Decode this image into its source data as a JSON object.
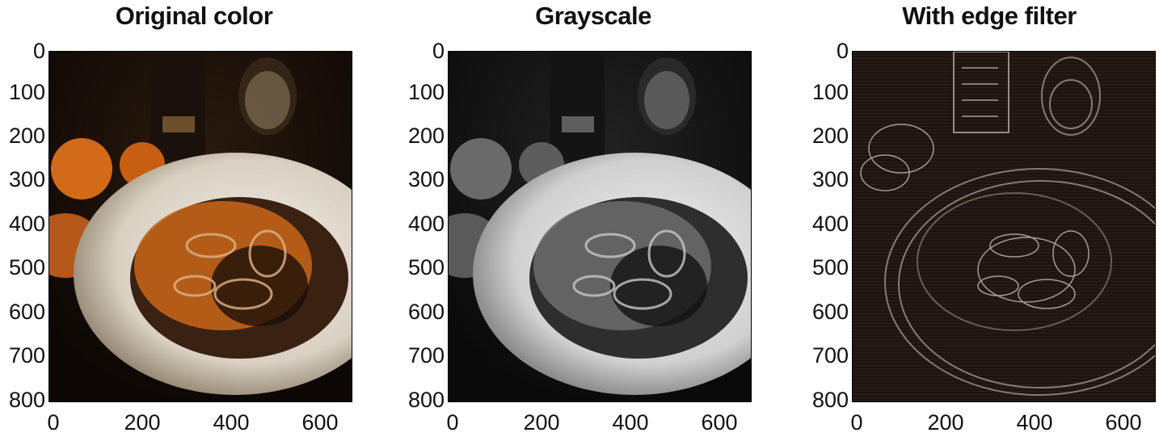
{
  "panels": [
    {
      "title": "Original color",
      "variant": "color"
    },
    {
      "title": "Grayscale",
      "variant": "gray"
    },
    {
      "title": "With edge filter",
      "variant": "edge"
    }
  ],
  "y_ticks": [
    "0",
    "100",
    "200",
    "300",
    "400",
    "500",
    "600",
    "700",
    "800"
  ],
  "x_ticks": [
    "0",
    "200",
    "400",
    "600"
  ],
  "y_range": [
    0,
    800
  ],
  "x_range": [
    0,
    680
  ],
  "colors": {
    "background": "#ffffff",
    "orange_accent": "#d9741c",
    "plate": "#e8e2d8",
    "dark": "#140c06"
  }
}
